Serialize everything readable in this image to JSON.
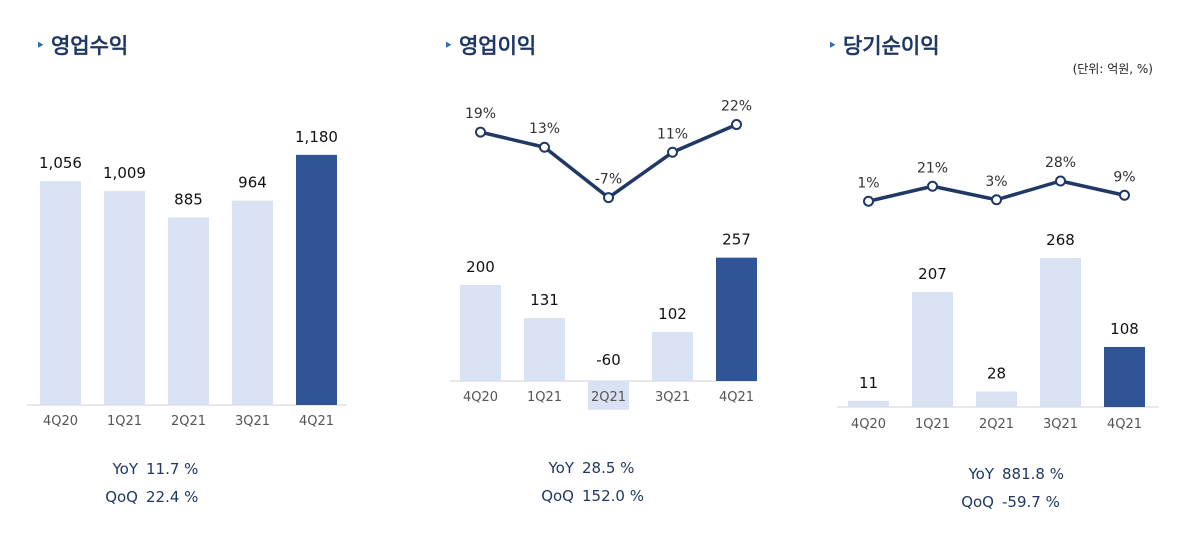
{
  "unit_note": "(단위: 억원, %)",
  "colors": {
    "bar_light": "#d9e2f3",
    "bar_highlight": "#2f5597",
    "line": "#1f3864",
    "title": "#1f3864"
  },
  "chart_data": [
    {
      "type": "bar",
      "title": "영업수익",
      "categories": [
        "4Q20",
        "1Q21",
        "2Q21",
        "3Q21",
        "4Q21"
      ],
      "values": [
        1056,
        1009,
        885,
        964,
        1180
      ],
      "value_labels": [
        "1,056",
        "1,009",
        "885",
        "964",
        "1,180"
      ],
      "highlight_index": 4,
      "stats": [
        {
          "label": "YoY",
          "value": "11.7 %"
        },
        {
          "label": "QoQ",
          "value": "22.4 %"
        }
      ]
    },
    {
      "type": "bar",
      "title": "영업이익",
      "categories": [
        "4Q20",
        "1Q21",
        "2Q21",
        "3Q21",
        "4Q21"
      ],
      "values": [
        200,
        131,
        -60,
        102,
        257
      ],
      "value_labels": [
        "200",
        "131",
        "-60",
        "102",
        "257"
      ],
      "highlight_index": 4,
      "margin_line": {
        "values": [
          19,
          13,
          -7,
          11,
          22
        ],
        "labels": [
          "19%",
          "13%",
          "-7%",
          "11%",
          "22%"
        ]
      },
      "stats": [
        {
          "label": "YoY",
          "value": "28.5 %"
        },
        {
          "label": "QoQ",
          "value": "152.0 %"
        }
      ]
    },
    {
      "type": "bar",
      "title": "당기순이익",
      "categories": [
        "4Q20",
        "1Q21",
        "2Q21",
        "3Q21",
        "4Q21"
      ],
      "values": [
        11,
        207,
        28,
        268,
        108
      ],
      "value_labels": [
        "11",
        "207",
        "28",
        "268",
        "108"
      ],
      "highlight_index": 4,
      "margin_line": {
        "values": [
          1,
          21,
          3,
          28,
          9
        ],
        "labels": [
          "1%",
          "21%",
          "3%",
          "28%",
          "9%"
        ]
      },
      "stats": [
        {
          "label": "YoY",
          "value": "881.8 %"
        },
        {
          "label": "QoQ",
          "value": "-59.7 %"
        }
      ]
    }
  ]
}
